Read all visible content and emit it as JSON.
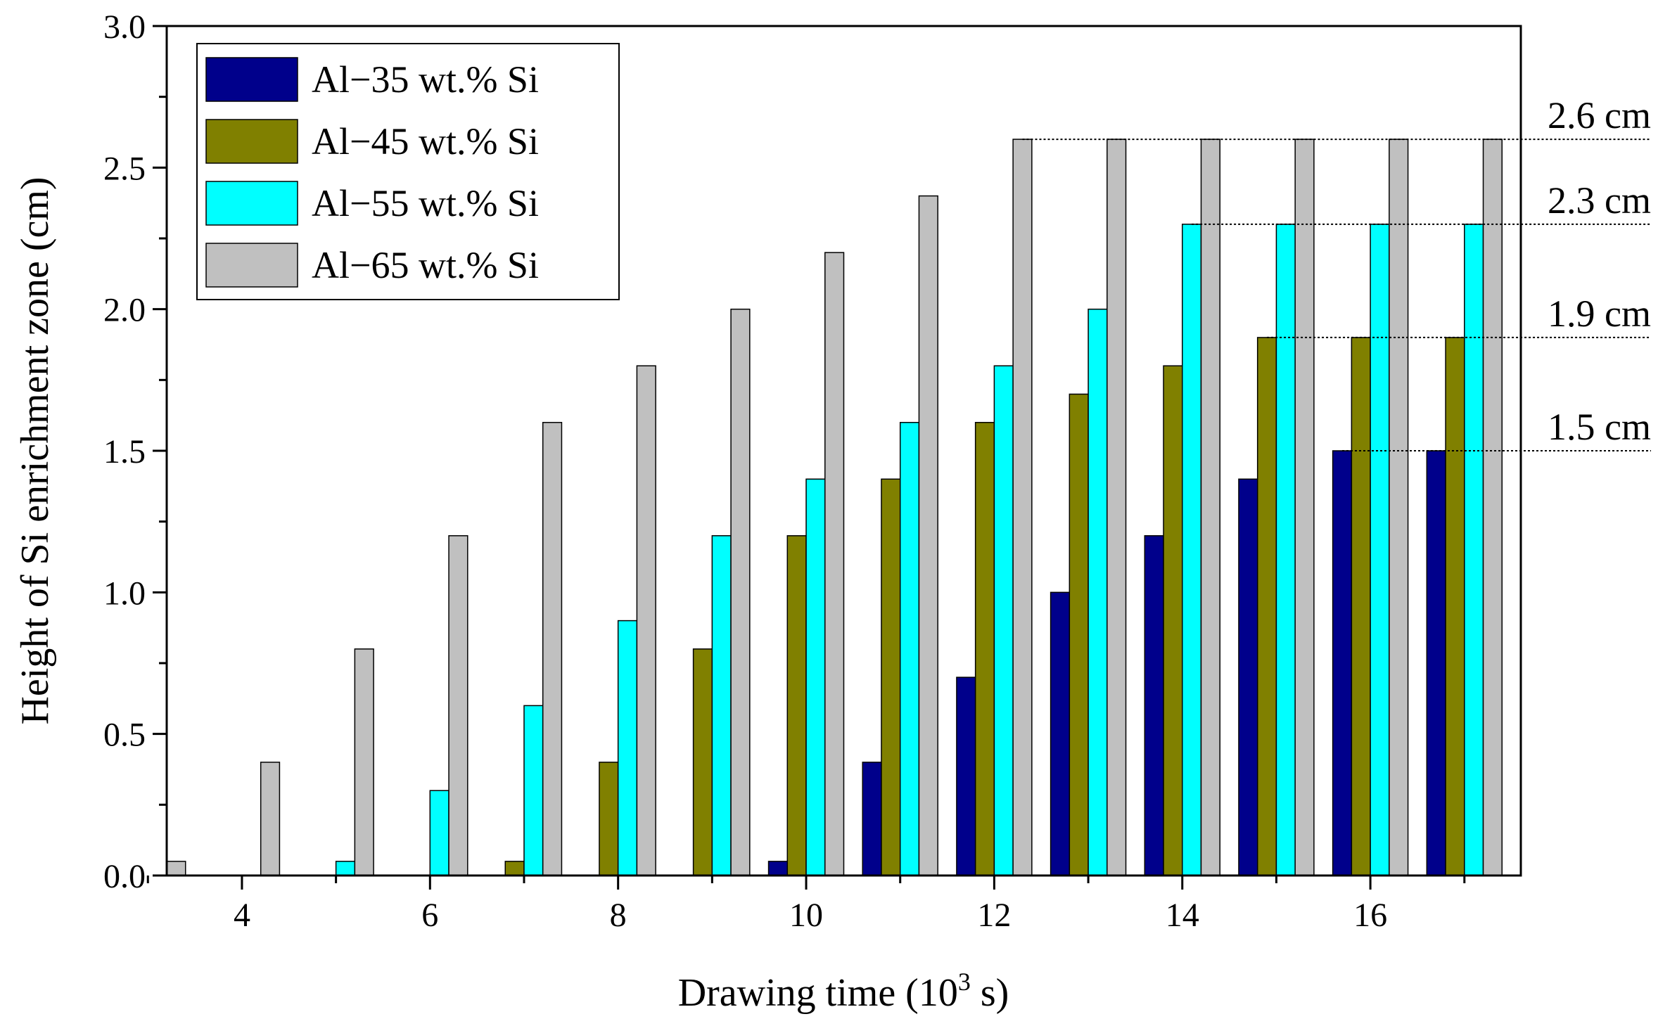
{
  "chart_data": {
    "type": "bar",
    "xlabel_main": "Drawing time (10",
    "xlabel_sup": "3",
    "xlabel_tail": " s)",
    "ylabel": "Height of Si enrichment zone (cm)",
    "xlim": [
      3.2,
      17.6
    ],
    "ylim": [
      0,
      3.0
    ],
    "x_ticks": [
      "4",
      "6",
      "8",
      "10",
      "12",
      "14",
      "16"
    ],
    "y_ticks": [
      "0.0",
      "0.5",
      "1.0",
      "1.5",
      "2.0",
      "2.5",
      "3.0"
    ],
    "grid": false,
    "legend_position": "top-left",
    "series": [
      {
        "name": "Al−35 wt.% Si",
        "color": "#00008b",
        "x": [
          9.7,
          10.7,
          11.7,
          12.7,
          13.7,
          14.7,
          15.7,
          16.7
        ],
        "values": [
          0.05,
          0.4,
          0.7,
          1.0,
          1.2,
          1.4,
          1.5,
          1.5
        ]
      },
      {
        "name": "Al−45 wt.% Si",
        "color": "#808000",
        "x": [
          6.9,
          7.9,
          8.9,
          9.9,
          10.9,
          11.9,
          12.9,
          13.9,
          14.9,
          15.9,
          16.9
        ],
        "values": [
          0.05,
          0.4,
          0.8,
          1.2,
          1.4,
          1.6,
          1.7,
          1.8,
          1.9,
          1.9,
          1.9
        ]
      },
      {
        "name": "Al−55 wt.% Si",
        "color": "#00ffff",
        "x": [
          5.1,
          6.1,
          7.1,
          8.1,
          9.1,
          10.1,
          11.1,
          12.1,
          13.1,
          14.1,
          15.1,
          16.1,
          17.1
        ],
        "values": [
          0.05,
          0.3,
          0.6,
          0.9,
          1.2,
          1.4,
          1.6,
          1.8,
          2.0,
          2.3,
          2.3,
          2.3,
          2.3
        ]
      },
      {
        "name": "Al−65 wt.% Si",
        "color": "#c0c0c0",
        "x": [
          3.3,
          4.3,
          5.3,
          6.3,
          7.3,
          8.3,
          9.3,
          10.3,
          11.3,
          12.3,
          13.3,
          14.3,
          15.3,
          16.3,
          17.3
        ],
        "values": [
          0.05,
          0.4,
          0.8,
          1.2,
          1.6,
          1.8,
          2.0,
          2.2,
          2.4,
          2.6,
          2.6,
          2.6,
          2.6,
          2.6,
          2.6
        ]
      }
    ],
    "annotations": [
      {
        "label": "2.6 cm",
        "value": 2.6,
        "from_x": 12.3
      },
      {
        "label": "2.3 cm",
        "value": 2.3,
        "from_x": 14.1
      },
      {
        "label": "1.9 cm",
        "value": 1.9,
        "from_x": 14.9
      },
      {
        "label": "1.5 cm",
        "value": 1.5,
        "from_x": 15.7
      }
    ],
    "bar_width": 0.2
  }
}
